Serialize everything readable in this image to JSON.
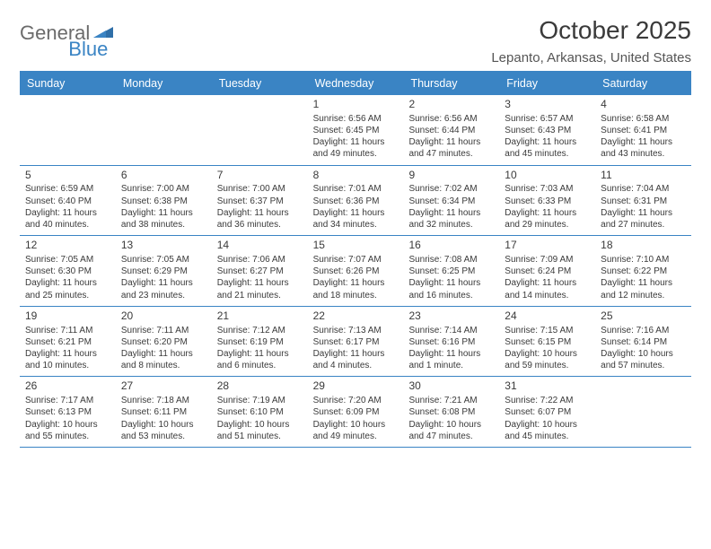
{
  "logo": {
    "text_general": "General",
    "text_blue": "Blue"
  },
  "title": "October 2025",
  "subtitle": "Lepanto, Arkansas, United States",
  "colors": {
    "accent": "#3a84c4",
    "text": "#3a3a3a",
    "logo_gray": "#6b6b6b",
    "background": "#ffffff"
  },
  "day_names": [
    "Sunday",
    "Monday",
    "Tuesday",
    "Wednesday",
    "Thursday",
    "Friday",
    "Saturday"
  ],
  "weeks": [
    [
      null,
      null,
      null,
      {
        "n": "1",
        "sr": "6:56 AM",
        "ss": "6:45 PM",
        "dl": "11 hours and 49 minutes."
      },
      {
        "n": "2",
        "sr": "6:56 AM",
        "ss": "6:44 PM",
        "dl": "11 hours and 47 minutes."
      },
      {
        "n": "3",
        "sr": "6:57 AM",
        "ss": "6:43 PM",
        "dl": "11 hours and 45 minutes."
      },
      {
        "n": "4",
        "sr": "6:58 AM",
        "ss": "6:41 PM",
        "dl": "11 hours and 43 minutes."
      }
    ],
    [
      {
        "n": "5",
        "sr": "6:59 AM",
        "ss": "6:40 PM",
        "dl": "11 hours and 40 minutes."
      },
      {
        "n": "6",
        "sr": "7:00 AM",
        "ss": "6:38 PM",
        "dl": "11 hours and 38 minutes."
      },
      {
        "n": "7",
        "sr": "7:00 AM",
        "ss": "6:37 PM",
        "dl": "11 hours and 36 minutes."
      },
      {
        "n": "8",
        "sr": "7:01 AM",
        "ss": "6:36 PM",
        "dl": "11 hours and 34 minutes."
      },
      {
        "n": "9",
        "sr": "7:02 AM",
        "ss": "6:34 PM",
        "dl": "11 hours and 32 minutes."
      },
      {
        "n": "10",
        "sr": "7:03 AM",
        "ss": "6:33 PM",
        "dl": "11 hours and 29 minutes."
      },
      {
        "n": "11",
        "sr": "7:04 AM",
        "ss": "6:31 PM",
        "dl": "11 hours and 27 minutes."
      }
    ],
    [
      {
        "n": "12",
        "sr": "7:05 AM",
        "ss": "6:30 PM",
        "dl": "11 hours and 25 minutes."
      },
      {
        "n": "13",
        "sr": "7:05 AM",
        "ss": "6:29 PM",
        "dl": "11 hours and 23 minutes."
      },
      {
        "n": "14",
        "sr": "7:06 AM",
        "ss": "6:27 PM",
        "dl": "11 hours and 21 minutes."
      },
      {
        "n": "15",
        "sr": "7:07 AM",
        "ss": "6:26 PM",
        "dl": "11 hours and 18 minutes."
      },
      {
        "n": "16",
        "sr": "7:08 AM",
        "ss": "6:25 PM",
        "dl": "11 hours and 16 minutes."
      },
      {
        "n": "17",
        "sr": "7:09 AM",
        "ss": "6:24 PM",
        "dl": "11 hours and 14 minutes."
      },
      {
        "n": "18",
        "sr": "7:10 AM",
        "ss": "6:22 PM",
        "dl": "11 hours and 12 minutes."
      }
    ],
    [
      {
        "n": "19",
        "sr": "7:11 AM",
        "ss": "6:21 PM",
        "dl": "11 hours and 10 minutes."
      },
      {
        "n": "20",
        "sr": "7:11 AM",
        "ss": "6:20 PM",
        "dl": "11 hours and 8 minutes."
      },
      {
        "n": "21",
        "sr": "7:12 AM",
        "ss": "6:19 PM",
        "dl": "11 hours and 6 minutes."
      },
      {
        "n": "22",
        "sr": "7:13 AM",
        "ss": "6:17 PM",
        "dl": "11 hours and 4 minutes."
      },
      {
        "n": "23",
        "sr": "7:14 AM",
        "ss": "6:16 PM",
        "dl": "11 hours and 1 minute."
      },
      {
        "n": "24",
        "sr": "7:15 AM",
        "ss": "6:15 PM",
        "dl": "10 hours and 59 minutes."
      },
      {
        "n": "25",
        "sr": "7:16 AM",
        "ss": "6:14 PM",
        "dl": "10 hours and 57 minutes."
      }
    ],
    [
      {
        "n": "26",
        "sr": "7:17 AM",
        "ss": "6:13 PM",
        "dl": "10 hours and 55 minutes."
      },
      {
        "n": "27",
        "sr": "7:18 AM",
        "ss": "6:11 PM",
        "dl": "10 hours and 53 minutes."
      },
      {
        "n": "28",
        "sr": "7:19 AM",
        "ss": "6:10 PM",
        "dl": "10 hours and 51 minutes."
      },
      {
        "n": "29",
        "sr": "7:20 AM",
        "ss": "6:09 PM",
        "dl": "10 hours and 49 minutes."
      },
      {
        "n": "30",
        "sr": "7:21 AM",
        "ss": "6:08 PM",
        "dl": "10 hours and 47 minutes."
      },
      {
        "n": "31",
        "sr": "7:22 AM",
        "ss": "6:07 PM",
        "dl": "10 hours and 45 minutes."
      },
      null
    ]
  ],
  "labels": {
    "sunrise": "Sunrise:",
    "sunset": "Sunset:",
    "daylight": "Daylight:"
  }
}
